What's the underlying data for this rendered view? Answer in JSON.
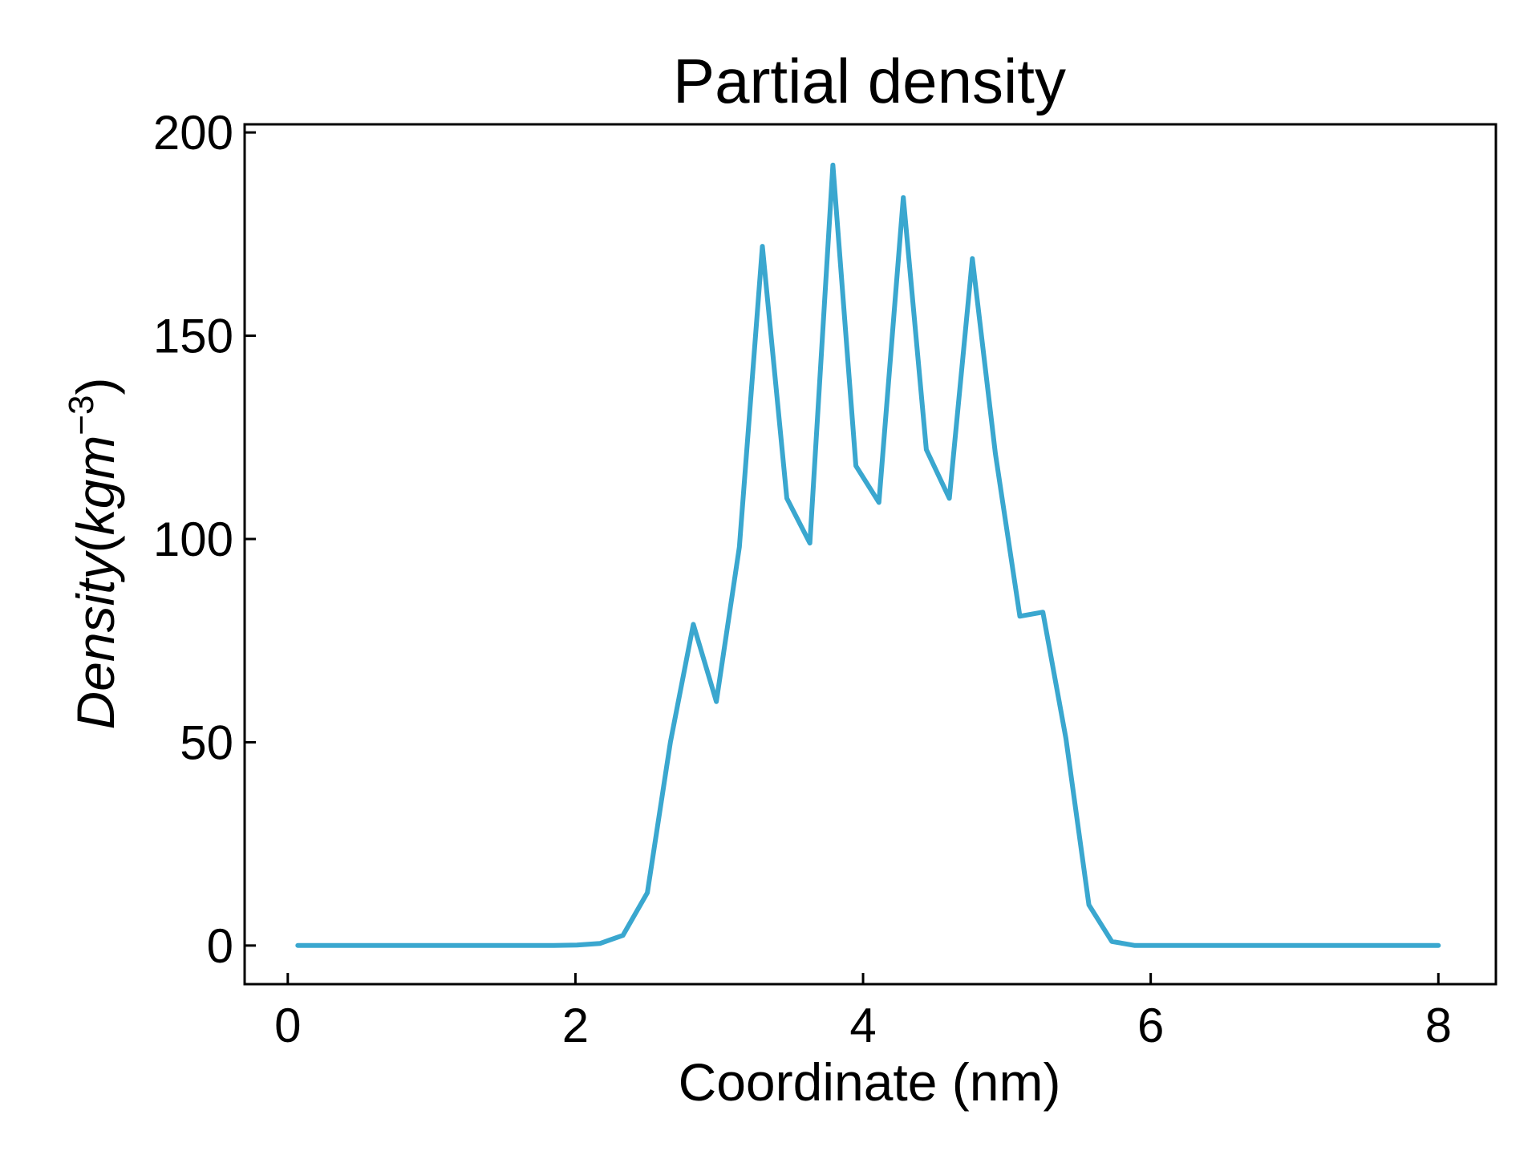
{
  "chart_data": {
    "type": "line",
    "title": "Partial density",
    "xlabel": "Coordinate (nm)",
    "ylabel": {
      "text": "Density",
      "unit_open": "(",
      "unit_base": "kgm",
      "unit_sup": "−3",
      "unit_close": ")"
    },
    "xlim": [
      -0.3,
      8.4
    ],
    "ylim": [
      -9.5,
      202
    ],
    "xticks": [
      0,
      2,
      4,
      6,
      8
    ],
    "xtick_labels": [
      "0",
      "2",
      "4",
      "6",
      "8"
    ],
    "yticks": [
      0,
      50,
      100,
      150,
      200
    ],
    "ytick_labels": [
      "0",
      "50",
      "100",
      "150",
      "200"
    ],
    "grid": false,
    "legend": "none",
    "color": "#3aa7cf",
    "series": [
      {
        "x": [
          0.07,
          0.23,
          0.39,
          0.55,
          0.72,
          0.88,
          1.04,
          1.2,
          1.36,
          1.53,
          1.69,
          1.85,
          2.01,
          2.17,
          2.33,
          2.5,
          2.66,
          2.82,
          2.98,
          3.14,
          3.3,
          3.47,
          3.63,
          3.79,
          3.95,
          4.11,
          4.28,
          4.44,
          4.6,
          4.76,
          4.92,
          5.09,
          5.25,
          5.41,
          5.57,
          5.73,
          5.89,
          6.06,
          6.22,
          6.38,
          6.54,
          6.7,
          6.87,
          7.03,
          7.19,
          7.35,
          7.51,
          7.68,
          7.84,
          8.0
        ],
        "y": [
          0,
          0,
          0,
          0,
          0,
          0,
          0,
          0,
          0,
          0,
          0,
          0,
          0.1,
          0.5,
          2.5,
          13,
          50,
          79,
          60,
          98,
          172,
          110,
          99,
          192,
          118,
          109,
          184,
          122,
          110,
          169,
          121,
          81,
          82,
          51,
          10,
          1,
          0,
          0,
          0,
          0,
          0,
          0,
          0,
          0,
          0,
          0,
          0,
          0,
          0,
          0
        ]
      }
    ]
  }
}
